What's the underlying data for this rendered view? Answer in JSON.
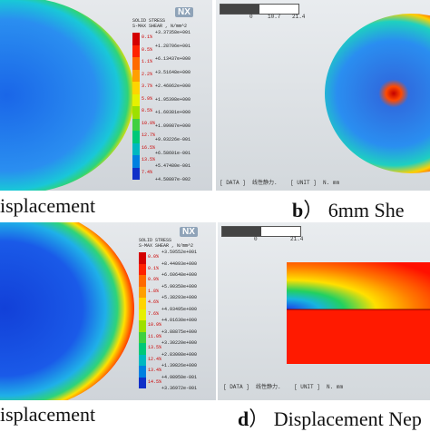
{
  "captions": {
    "a": {
      "text": "isplacement"
    },
    "b": {
      "letter": "b",
      "text": "） 6mm   She"
    },
    "c": {
      "text": "isplacement"
    },
    "d": {
      "letter": "d",
      "text": "） Displacement Nep"
    }
  },
  "legend_top": {
    "logo": "NX",
    "title_line1": "SOLID STRESS",
    "title_line2": "S-MAX SHEAR , N/mm^2",
    "values": [
      "+3.37358e+001",
      "+1.28706e+001",
      "+6.13437e+000",
      "+3.51648e+000",
      "+2.46062e+000",
      "+1.95398e+000",
      "+1.60381e+000",
      "+1.09987e+000",
      "+9.03226e-001",
      "+6.58601e-001",
      "+5.47480e-001",
      "+4.50807e-002"
    ],
    "percents": [
      "0.1%",
      "0.5%",
      "1.1%",
      "2.2%",
      "3.7%",
      "5.9%",
      "8.5%",
      "10.9%",
      "12.7%",
      "16.5%",
      "13.5%",
      "7.4%"
    ],
    "colors": [
      "#d40000",
      "#ff2200",
      "#ff6a00",
      "#ff9f00",
      "#ffd400",
      "#e6f000",
      "#9de000",
      "#40d040",
      "#00c878",
      "#00b8c0",
      "#0080e0",
      "#1030c8"
    ]
  },
  "legend_bottom": {
    "logo": "NX",
    "title_line1": "SOLID STRESS",
    "title_line2": "S-MAX SHEAR , N/mm^2",
    "values": [
      "+3.59552e+001",
      "+8.44093e+000",
      "+6.60648e+000",
      "+5.90350e+000",
      "+5.38293e+000",
      "+4.93495e+000",
      "+4.01630e+000",
      "+3.88875e+000",
      "+3.30220e+000",
      "+2.83008e+000",
      "+1.39826e+000",
      "+4.98950e-001",
      "+3.36972e-001"
    ],
    "percents": [
      "0.0%",
      "0.1%",
      "0.9%",
      "1.8%",
      "4.6%",
      "7.6%",
      "10.9%",
      "11.0%",
      "13.5%",
      "12.4%",
      "13.4%",
      "14.5%"
    ],
    "colors": [
      "#d40000",
      "#ff2200",
      "#ff6a00",
      "#ff9f00",
      "#ffd400",
      "#e6f000",
      "#9de000",
      "#40d040",
      "#00c878",
      "#00b8c0",
      "#0080e0",
      "#1030c8"
    ]
  },
  "status_tr": {
    "data": "[ DATA ]",
    "load": "线性静力.",
    "unit": "[ UNIT ]",
    "unit_val": "N. mm"
  },
  "status_br": {
    "data": "[ DATA ]",
    "load": "线性静力.",
    "unit": "[ UNIT ]",
    "unit_val": "N. mm"
  },
  "ruler_tr": [
    "0",
    "10.7",
    "21.4"
  ],
  "ruler_br": [
    "0",
    "21.4"
  ]
}
